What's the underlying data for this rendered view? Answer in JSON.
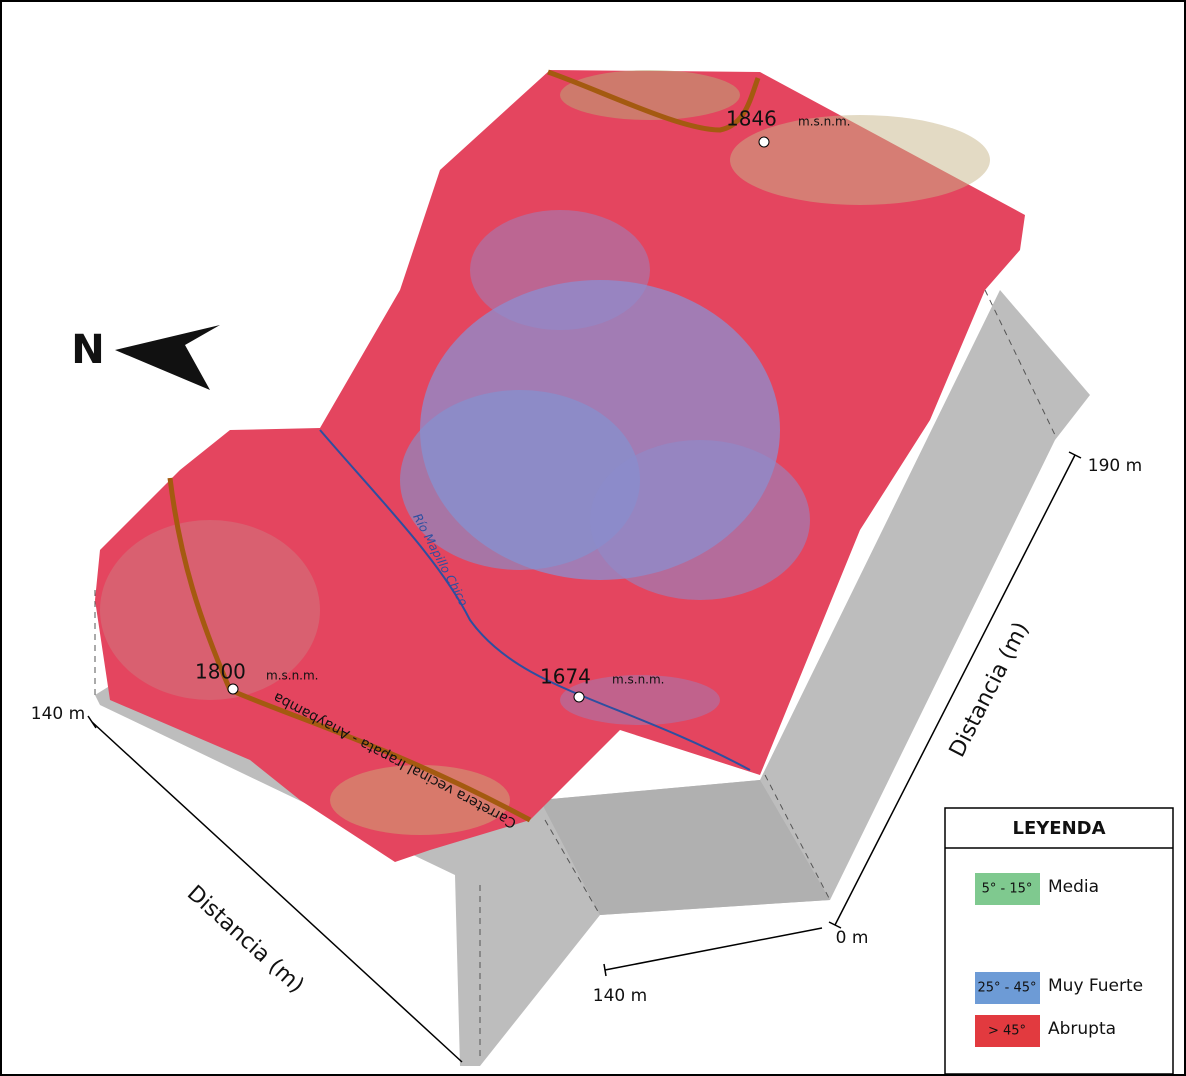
{
  "north": "N",
  "elevations": [
    {
      "value": "1846",
      "unit": "m.s.n.m."
    },
    {
      "value": "1800",
      "unit": "m.s.n.m."
    },
    {
      "value": "1674",
      "unit": "m.s.n.m."
    }
  ],
  "axes": {
    "left": {
      "tick": "140 m",
      "title": "Distancia (m)"
    },
    "right": {
      "start": "0 m",
      "end": "190 m",
      "title": "Distancia (m)"
    },
    "bottom": {
      "tick": "140 m"
    }
  },
  "river": "Río Mapillo Chico",
  "road": "Carretera vecinal Irapata - Anaybamba",
  "legend": {
    "title": "LEYENDA",
    "items": [
      {
        "range": "5° - 15°",
        "label": "Media",
        "color": "#7fc98f"
      },
      {
        "range": "25° - 45°",
        "label": "Muy Fuerte",
        "color": "#6d9bd6"
      },
      {
        "range": "> 45°",
        "label": "Abrupta",
        "color": "#e23a3f"
      }
    ]
  }
}
